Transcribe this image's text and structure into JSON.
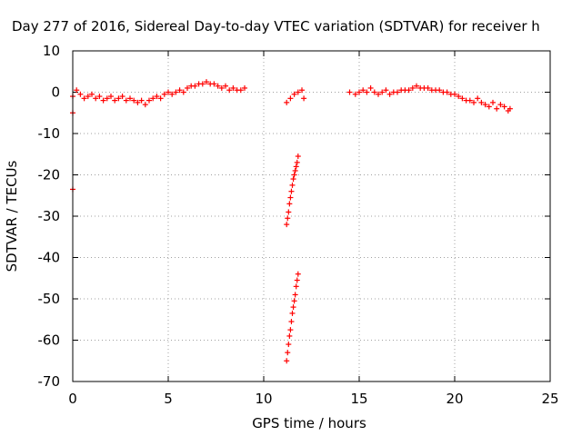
{
  "chart_data": {
    "type": "scatter",
    "title": "Day 277 of 2016, Sidereal Day-to-day VTEC variation (SDTVAR) for receiver h",
    "xlabel": "GPS time / hours",
    "ylabel": "SDTVAR / TECUs",
    "xlim": [
      0,
      25
    ],
    "ylim": [
      -70,
      10
    ],
    "xticks": [
      0,
      5,
      10,
      15,
      20,
      25
    ],
    "yticks": [
      -70,
      -60,
      -50,
      -40,
      -30,
      -20,
      -10,
      0,
      10
    ],
    "grid": true,
    "marker": "+",
    "color": "#ff0000",
    "series": [
      {
        "x": [
          0.0,
          0.2,
          0.4,
          0.6,
          0.8,
          1.0,
          1.2,
          1.4,
          1.6,
          1.8,
          2.0,
          2.2,
          2.4,
          2.6,
          2.8,
          3.0,
          3.2,
          3.4,
          3.6,
          3.8,
          4.0,
          4.2,
          4.4,
          4.6,
          4.8,
          5.0,
          5.2,
          5.4,
          5.6,
          5.8,
          6.0,
          6.2,
          6.4,
          6.6,
          6.8,
          7.0,
          7.2,
          7.4,
          7.6,
          7.8,
          8.0,
          8.2,
          8.4,
          8.6,
          8.8,
          9.0,
          0.0,
          0.0,
          11.2,
          11.4,
          11.6,
          11.8,
          12.0,
          12.1,
          11.2,
          11.25,
          11.3,
          11.35,
          11.4,
          11.45,
          11.5,
          11.55,
          11.6,
          11.65,
          11.7,
          11.75,
          11.8,
          11.2,
          11.25,
          11.3,
          11.35,
          11.4,
          11.45,
          11.5,
          11.55,
          11.6,
          11.65,
          11.7,
          11.75,
          11.8,
          14.5,
          14.8,
          15.0,
          15.2,
          15.4,
          15.6,
          15.8,
          16.0,
          16.2,
          16.4,
          16.6,
          16.8,
          17.0,
          17.2,
          17.4,
          17.6,
          17.8,
          18.0,
          18.2,
          18.4,
          18.6,
          18.8,
          19.0,
          19.2,
          19.4,
          19.6,
          19.8,
          20.0,
          20.2,
          20.4,
          20.6,
          20.8,
          21.0,
          21.2,
          21.4,
          21.6,
          21.8,
          22.0,
          22.2,
          22.4,
          22.6,
          22.8,
          22.9
        ],
        "y": [
          -1.0,
          0.5,
          -0.5,
          -1.5,
          -1.0,
          -0.5,
          -1.5,
          -1.0,
          -2.0,
          -1.5,
          -1.0,
          -2.0,
          -1.5,
          -1.0,
          -2.0,
          -1.5,
          -2.0,
          -2.5,
          -2.0,
          -3.0,
          -2.0,
          -1.5,
          -1.0,
          -1.5,
          -0.5,
          0.0,
          -0.5,
          0.0,
          0.5,
          0.0,
          1.0,
          1.5,
          1.5,
          2.0,
          2.0,
          2.5,
          2.0,
          2.0,
          1.5,
          1.0,
          1.5,
          0.5,
          1.0,
          0.5,
          0.5,
          1.0,
          -5.0,
          -23.5,
          -2.5,
          -1.5,
          -0.5,
          0.0,
          0.5,
          -1.5,
          -32.0,
          -30.5,
          -29.0,
          -27.0,
          -25.5,
          -24.0,
          -22.5,
          -21.0,
          -20.0,
          -19.0,
          -18.0,
          -17.0,
          -15.5,
          -65.0,
          -63.0,
          -61.0,
          -59.0,
          -57.5,
          -55.5,
          -53.5,
          -52.0,
          -50.5,
          -49.0,
          -47.0,
          -45.5,
          -44.0,
          0.0,
          -0.5,
          0.0,
          0.5,
          0.0,
          1.0,
          0.0,
          -0.5,
          0.0,
          0.5,
          -0.5,
          0.0,
          0.0,
          0.5,
          0.5,
          0.5,
          1.0,
          1.5,
          1.0,
          1.0,
          1.0,
          0.5,
          0.5,
          0.5,
          0.0,
          0.0,
          -0.5,
          -0.5,
          -1.0,
          -1.5,
          -2.0,
          -2.0,
          -2.5,
          -1.5,
          -2.5,
          -3.0,
          -3.5,
          -2.5,
          -4.0,
          -3.0,
          -3.5,
          -4.5,
          -4.0
        ]
      }
    ]
  }
}
